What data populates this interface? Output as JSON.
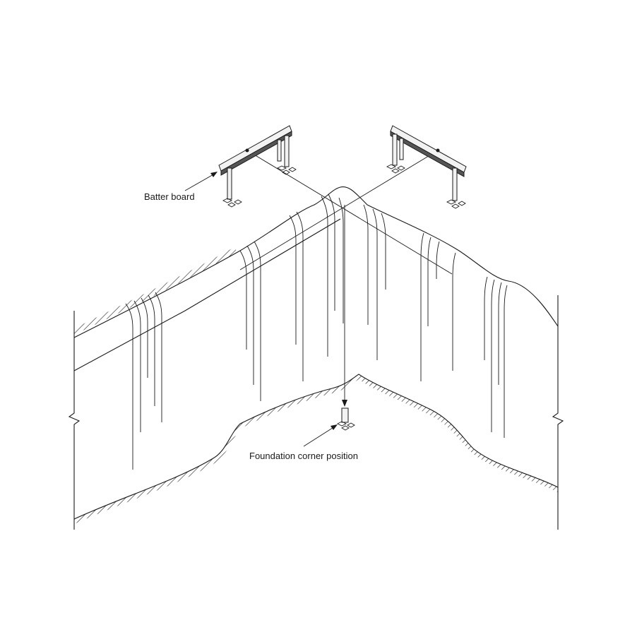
{
  "labels": {
    "batter_board": "Batter board",
    "foundation_corner": "Foundation corner position"
  },
  "colors": {
    "line": "#1a1a1a",
    "background": "#ffffff"
  }
}
